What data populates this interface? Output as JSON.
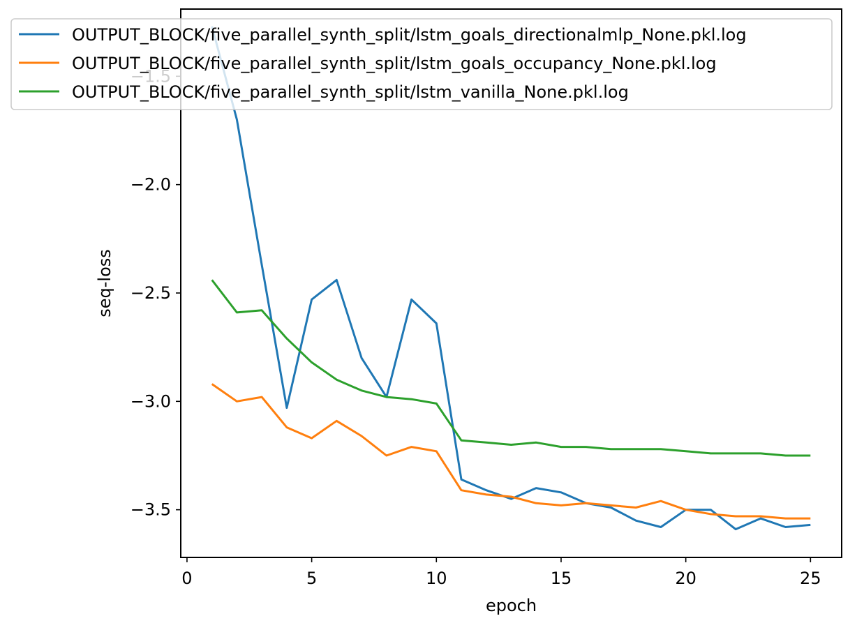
{
  "chart_data": {
    "type": "line",
    "title": "",
    "xlabel": "epoch",
    "ylabel": "seq-loss",
    "xlim": [
      -0.25,
      26.25
    ],
    "ylim": [
      -3.72,
      -1.19
    ],
    "xticks": [
      0,
      5,
      10,
      15,
      20,
      25
    ],
    "xtick_labels": [
      "0",
      "5",
      "10",
      "15",
      "20",
      "25"
    ],
    "yticks": [
      -3.5,
      -3.0,
      -2.5,
      -2.0,
      -1.5
    ],
    "ytick_labels": [
      "−3.5",
      "−3.0",
      "−2.5",
      "−2.0",
      "−1.5"
    ],
    "grid": false,
    "legend_position": "top",
    "x": [
      1,
      2,
      3,
      4,
      5,
      6,
      7,
      8,
      9,
      10,
      11,
      12,
      13,
      14,
      15,
      16,
      17,
      18,
      19,
      20,
      21,
      22,
      23,
      24,
      25
    ],
    "series": [
      {
        "name": "OUTPUT_BLOCK/five_parallel_synth_split/lstm_goals_directionalmlp_None.pkl.log",
        "color": "#1f77b4",
        "values": [
          -1.27,
          -1.7,
          -2.37,
          -3.03,
          -2.53,
          -2.44,
          -2.8,
          -2.98,
          -2.53,
          -2.64,
          -3.36,
          -3.41,
          -3.45,
          -3.4,
          -3.42,
          -3.47,
          -3.49,
          -3.55,
          -3.58,
          -3.5,
          -3.5,
          -3.59,
          -3.54,
          -3.58,
          -3.57
        ]
      },
      {
        "name": "OUTPUT_BLOCK/five_parallel_synth_split/lstm_goals_occupancy_None.pkl.log",
        "color": "#ff7f0e",
        "values": [
          -2.92,
          -3.0,
          -2.98,
          -3.12,
          -3.17,
          -3.09,
          -3.16,
          -3.25,
          -3.21,
          -3.23,
          -3.41,
          -3.43,
          -3.44,
          -3.47,
          -3.48,
          -3.47,
          -3.48,
          -3.49,
          -3.46,
          -3.5,
          -3.52,
          -3.53,
          -3.53,
          -3.54,
          -3.54
        ]
      },
      {
        "name": "OUTPUT_BLOCK/five_parallel_synth_split/lstm_vanilla_None.pkl.log",
        "color": "#2ca02c",
        "values": [
          -2.44,
          -2.59,
          -2.58,
          -2.71,
          -2.82,
          -2.9,
          -2.95,
          -2.98,
          -2.99,
          -3.01,
          -3.18,
          -3.19,
          -3.2,
          -3.19,
          -3.21,
          -3.21,
          -3.22,
          -3.22,
          -3.22,
          -3.23,
          -3.24,
          -3.24,
          -3.24,
          -3.25,
          -3.25
        ]
      }
    ]
  }
}
